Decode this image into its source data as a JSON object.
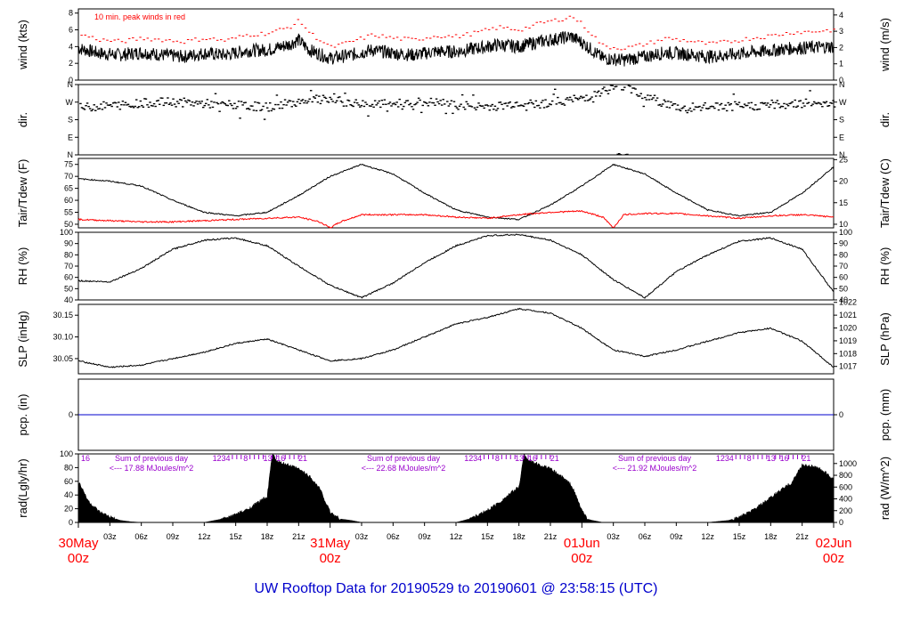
{
  "title": "UW Rooftop Data for 20190529  to  20190601 @ 23:58:15  (UTC)",
  "colors": {
    "title": "#0000cc",
    "peak": "#ff0000",
    "tdew": "#ff0000",
    "pcp": "#0000cc",
    "sum_note": "#9900cc",
    "day_label": "#ff0000",
    "series": "#000000"
  },
  "x_axis": {
    "hour_ticks": [
      "03z",
      "06z",
      "09z",
      "12z",
      "15z",
      "18z",
      "21z",
      "03z",
      "06z",
      "09z",
      "12z",
      "15z",
      "18z",
      "21z",
      "03z",
      "06z",
      "09z",
      "12z",
      "15z",
      "18z",
      "21z"
    ],
    "day_labels": [
      {
        "date": "30May",
        "hour": "00z"
      },
      {
        "date": "31May",
        "hour": "00z"
      },
      {
        "date": "01Jun",
        "hour": "00z"
      },
      {
        "date": "02Jun",
        "hour": "00z"
      }
    ]
  },
  "panels": {
    "wind": {
      "ylabel_left": "wind (kts)",
      "ylabel_right": "wind (m/s)",
      "ticks_left": [
        "0",
        "2",
        "4",
        "6",
        "8"
      ],
      "ticks_right": [
        "0",
        "1",
        "2",
        "3",
        "4"
      ],
      "note": "10 min. peak winds in red"
    },
    "dir": {
      "ylabel_left": "dir.",
      "ylabel_right": "dir.",
      "ticks": [
        "N",
        "E",
        "S",
        "W",
        "N"
      ]
    },
    "temp": {
      "ylabel_left": "Tair/Tdew (F)",
      "ylabel_right": "Tair/Tdew (C)",
      "ticks_left": [
        "50",
        "55",
        "60",
        "65",
        "70",
        "75"
      ],
      "ticks_right": [
        "10",
        "15",
        "20",
        "25"
      ]
    },
    "rh": {
      "ylabel_left": "RH (%)",
      "ylabel_right": "RH (%)",
      "ticks": [
        "40",
        "50",
        "60",
        "70",
        "80",
        "90",
        "100"
      ]
    },
    "slp": {
      "ylabel_left": "SLP (inHg)",
      "ylabel_right": "SLP (hPa)",
      "ticks_left": [
        "30.05",
        "30.10",
        "30.15"
      ],
      "ticks_right": [
        "1017",
        "1018",
        "1019",
        "1020",
        "1021",
        "1022"
      ]
    },
    "pcp": {
      "ylabel_left": "pcp. (in)",
      "ylabel_right": "pcp. (mm)",
      "ticks_left": [
        "0"
      ],
      "ticks_right": [
        "0"
      ]
    },
    "rad": {
      "ylabel_left": "rad(Lgly/hr)",
      "ylabel_right": "rad (W/m^2)",
      "ticks_left": [
        "0",
        "20",
        "40",
        "60",
        "80",
        "100"
      ],
      "ticks_right": [
        "0",
        "200",
        "400",
        "600",
        "800",
        "1000"
      ],
      "sum_title": "Sum of previous day",
      "sums": [
        "<--- 17.88 MJoules/m^2",
        "<--- 22.68 MJoules/m^2",
        "<--- 21.92 MJoules/m^2"
      ],
      "hour_marks": [
        "16",
        "1",
        "2",
        "3",
        "4",
        "5",
        "6",
        "7",
        "8",
        "9",
        "10",
        "11",
        "12",
        "13",
        "14",
        "15",
        "16",
        "17",
        "18",
        "19",
        "20",
        "21"
      ]
    }
  },
  "chart_data": [
    {
      "type": "line",
      "title": "UW Rooftop Data for 20190529  to  20190601 @ 23:58:15  (UTC)",
      "panel": "wind",
      "x_units": "hours since 30May 00z",
      "xlim": [
        0,
        72
      ],
      "ylabel": "wind (kts)",
      "ylim": [
        0,
        8.5
      ],
      "series": [
        {
          "name": "wind",
          "x": [
            0,
            2,
            4,
            6,
            8,
            10,
            12,
            14,
            16,
            18,
            20,
            21,
            22,
            24,
            26,
            28,
            30,
            32,
            34,
            36,
            38,
            40,
            42,
            44,
            46,
            47,
            48,
            50,
            52,
            54,
            56,
            58,
            60,
            62,
            64,
            66,
            68,
            70,
            72
          ],
          "values": [
            3.8,
            3.2,
            3.0,
            3.3,
            3.0,
            2.8,
            3.2,
            3.0,
            3.5,
            3.6,
            4.2,
            4.8,
            3.6,
            2.6,
            3.0,
            3.6,
            3.2,
            3.0,
            3.4,
            3.4,
            3.8,
            4.2,
            4.0,
            4.6,
            5.0,
            5.2,
            4.5,
            2.6,
            2.4,
            2.8,
            3.3,
            3.1,
            2.8,
            3.0,
            3.3,
            3.5,
            3.8,
            3.9,
            4.0
          ]
        },
        {
          "name": "10 min. peak winds in red",
          "x": [
            0,
            2,
            4,
            6,
            8,
            10,
            12,
            14,
            16,
            18,
            20,
            21,
            22,
            24,
            26,
            28,
            30,
            32,
            34,
            36,
            38,
            40,
            42,
            44,
            46,
            47,
            48,
            50,
            52,
            54,
            56,
            58,
            60,
            62,
            64,
            66,
            68,
            70,
            72
          ],
          "values": [
            5.5,
            4.8,
            4.6,
            5.0,
            4.8,
            4.6,
            5.0,
            4.7,
            5.4,
            5.6,
            6.3,
            7.1,
            5.6,
            3.9,
            4.6,
            5.4,
            5.0,
            4.8,
            5.3,
            5.2,
            5.7,
            6.3,
            6.0,
            6.8,
            7.3,
            7.6,
            6.6,
            4.0,
            3.8,
            4.3,
            5.0,
            4.7,
            4.3,
            4.6,
            5.0,
            5.3,
            5.7,
            5.8,
            6.0
          ]
        }
      ]
    },
    {
      "type": "scatter",
      "panel": "dir",
      "x_units": "hours since 30May 00z",
      "xlim": [
        0,
        72
      ],
      "ylabel": "dir.",
      "ylim": [
        0,
        360
      ],
      "series": [
        {
          "name": "dir",
          "x": [
            0,
            2,
            4,
            6,
            8,
            10,
            12,
            14,
            16,
            18,
            20,
            22,
            24,
            26,
            28,
            30,
            32,
            34,
            36,
            38,
            40,
            42,
            44,
            46,
            48,
            50,
            52,
            54,
            56,
            58,
            60,
            62,
            64,
            66,
            68,
            70,
            72
          ],
          "values": [
            240,
            250,
            255,
            265,
            270,
            268,
            262,
            258,
            250,
            245,
            265,
            285,
            280,
            265,
            258,
            262,
            270,
            268,
            255,
            248,
            250,
            268,
            262,
            275,
            290,
            330,
            355,
            300,
            260,
            230,
            248,
            245,
            250,
            255,
            262,
            268,
            265
          ]
        }
      ]
    },
    {
      "type": "line",
      "panel": "temp",
      "x_units": "hours since 30May 00z",
      "xlim": [
        0,
        72
      ],
      "ylabel": "Tair/Tdew (F)",
      "ylim": [
        48.5,
        77.5
      ],
      "series": [
        {
          "name": "Tair",
          "x": [
            0,
            3,
            6,
            9,
            12,
            15,
            18,
            21,
            24,
            27,
            30,
            33,
            36,
            39,
            42,
            45,
            48,
            51,
            54,
            57,
            60,
            63,
            66,
            69,
            72
          ],
          "values": [
            69,
            68,
            66,
            60,
            55,
            53.5,
            55,
            62,
            70,
            75,
            71,
            63,
            56,
            53,
            52,
            58,
            66,
            75,
            71,
            63,
            56,
            53.5,
            55,
            63,
            74
          ]
        },
        {
          "name": "Tdew",
          "x": [
            0,
            3,
            6,
            9,
            12,
            15,
            18,
            21,
            23,
            24,
            25,
            27,
            30,
            33,
            36,
            39,
            42,
            45,
            48,
            50,
            51,
            52,
            54,
            57,
            60,
            63,
            66,
            69,
            72
          ],
          "values": [
            52,
            51.5,
            51,
            51,
            51.5,
            52,
            52.5,
            53,
            51,
            48.5,
            51,
            54,
            54,
            54,
            53,
            52.5,
            54,
            55,
            55.5,
            53,
            48.5,
            54,
            54.5,
            54.5,
            53.5,
            52.5,
            53.5,
            54,
            53
          ]
        }
      ]
    },
    {
      "type": "line",
      "panel": "rh",
      "x_units": "hours since 30May 00z",
      "xlim": [
        0,
        72
      ],
      "ylabel": "RH (%)",
      "ylim": [
        40,
        100
      ],
      "series": [
        {
          "name": "RH",
          "x": [
            0,
            3,
            6,
            9,
            12,
            15,
            18,
            21,
            24,
            27,
            30,
            33,
            36,
            39,
            42,
            45,
            48,
            51,
            54,
            57,
            60,
            63,
            66,
            69,
            72
          ],
          "values": [
            57,
            56,
            68,
            85,
            93,
            95,
            88,
            70,
            53,
            42,
            55,
            73,
            88,
            97,
            98,
            93,
            80,
            58,
            42,
            65,
            80,
            92,
            95,
            85,
            47
          ]
        }
      ]
    },
    {
      "type": "line",
      "panel": "slp",
      "x_units": "hours since 30May 00z",
      "xlim": [
        0,
        72
      ],
      "ylabel": "SLP (inHg)",
      "ylim": [
        30.015,
        30.175
      ],
      "series": [
        {
          "name": "SLP",
          "x": [
            0,
            3,
            6,
            9,
            12,
            15,
            18,
            21,
            24,
            27,
            30,
            33,
            36,
            39,
            42,
            45,
            48,
            51,
            54,
            57,
            60,
            63,
            66,
            69,
            72
          ],
          "values": [
            30.045,
            30.03,
            30.035,
            30.05,
            30.065,
            30.085,
            30.095,
            30.07,
            30.045,
            30.05,
            30.07,
            30.1,
            30.13,
            30.145,
            30.165,
            30.155,
            30.12,
            30.07,
            30.055,
            30.07,
            30.09,
            30.11,
            30.12,
            30.09,
            30.03
          ]
        }
      ]
    },
    {
      "type": "line",
      "panel": "pcp",
      "x_units": "hours since 30May 00z",
      "xlim": [
        0,
        72
      ],
      "ylabel": "pcp. (in)",
      "series": [
        {
          "name": "pcp",
          "x": [
            0,
            72
          ],
          "values": [
            0,
            0
          ]
        }
      ]
    },
    {
      "type": "area",
      "panel": "rad",
      "x_units": "hours since 30May 00z",
      "xlim": [
        0,
        72
      ],
      "ylabel": "rad(Lgly/hr)",
      "ylim": [
        0,
        100
      ],
      "series": [
        {
          "name": "rad",
          "x": [
            0,
            1,
            2,
            3,
            4,
            5,
            6,
            9,
            12,
            13,
            14,
            15,
            16,
            17,
            18,
            18.5,
            19,
            20,
            21,
            22,
            23,
            24,
            25,
            26,
            27,
            36,
            37,
            38,
            39,
            40,
            41,
            42,
            42.5,
            43,
            44,
            45,
            46,
            47,
            48,
            48.5,
            49,
            50,
            51,
            60,
            62,
            63,
            64,
            65,
            66,
            67,
            68,
            69,
            70,
            71,
            72
          ],
          "values": [
            60,
            30,
            15,
            8,
            3,
            1,
            0,
            0,
            0,
            3,
            6,
            12,
            18,
            28,
            38,
            100,
            88,
            84,
            78,
            68,
            50,
            15,
            5,
            3,
            0,
            0,
            4,
            10,
            18,
            28,
            40,
            52,
            100,
            90,
            84,
            78,
            68,
            55,
            18,
            5,
            3,
            0,
            0,
            0,
            3,
            8,
            15,
            25,
            36,
            48,
            58,
            84,
            82,
            76,
            62
          ]
        }
      ]
    }
  ]
}
